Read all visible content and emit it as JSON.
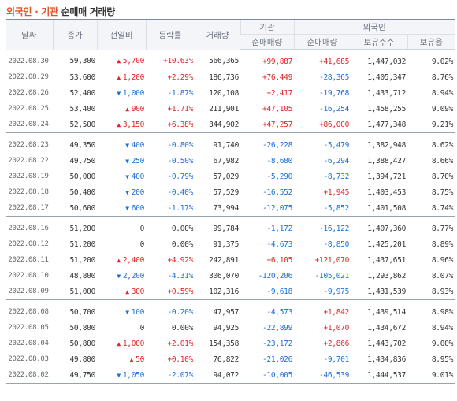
{
  "title": {
    "accent": "외국인 · 기관",
    "rest": "순매매 거래량"
  },
  "headers": {
    "date": "날짜",
    "close": "종가",
    "change": "전일비",
    "rate": "등락률",
    "volume": "거래량",
    "inst": "기관",
    "foreign": "외국인",
    "inst_net": "순매매량",
    "for_net": "순매매량",
    "for_hold": "보유주수",
    "for_ratio": "보유율"
  },
  "groups": [
    [
      {
        "date": "2022.08.30",
        "close": "59,300",
        "dir": "up",
        "change": "5,700",
        "rate": "+10.63%",
        "volume": "566,365",
        "inst": "+99,887",
        "foreign": "+41,685",
        "hold": "1,447,032",
        "ratio": "9.02%"
      },
      {
        "date": "2022.08.29",
        "close": "53,600",
        "dir": "up",
        "change": "1,200",
        "rate": "+2.29%",
        "volume": "186,736",
        "inst": "+76,449",
        "foreign": "-28,365",
        "hold": "1,405,347",
        "ratio": "8.76%"
      },
      {
        "date": "2022.08.26",
        "close": "52,400",
        "dir": "down",
        "change": "1,000",
        "rate": "-1.87%",
        "volume": "120,108",
        "inst": "+2,417",
        "foreign": "-19,768",
        "hold": "1,433,712",
        "ratio": "8.94%"
      },
      {
        "date": "2022.08.25",
        "close": "53,400",
        "dir": "up",
        "change": "900",
        "rate": "+1.71%",
        "volume": "211,901",
        "inst": "+47,105",
        "foreign": "-16,254",
        "hold": "1,458,255",
        "ratio": "9.09%"
      },
      {
        "date": "2022.08.24",
        "close": "52,500",
        "dir": "up",
        "change": "3,150",
        "rate": "+6.38%",
        "volume": "344,902",
        "inst": "+47,257",
        "foreign": "+86,000",
        "hold": "1,477,348",
        "ratio": "9.21%"
      }
    ],
    [
      {
        "date": "2022.08.23",
        "close": "49,350",
        "dir": "down",
        "change": "400",
        "rate": "-0.80%",
        "volume": "91,740",
        "inst": "-26,228",
        "foreign": "-5,479",
        "hold": "1,382,948",
        "ratio": "8.62%"
      },
      {
        "date": "2022.08.22",
        "close": "49,750",
        "dir": "down",
        "change": "250",
        "rate": "-0.50%",
        "volume": "67,982",
        "inst": "-8,680",
        "foreign": "-6,294",
        "hold": "1,388,427",
        "ratio": "8.66%"
      },
      {
        "date": "2022.08.19",
        "close": "50,000",
        "dir": "down",
        "change": "400",
        "rate": "-0.79%",
        "volume": "57,029",
        "inst": "-5,290",
        "foreign": "-8,732",
        "hold": "1,394,721",
        "ratio": "8.70%"
      },
      {
        "date": "2022.08.18",
        "close": "50,400",
        "dir": "down",
        "change": "200",
        "rate": "-0.40%",
        "volume": "57,529",
        "inst": "-16,552",
        "foreign": "+1,945",
        "hold": "1,403,453",
        "ratio": "8.75%"
      },
      {
        "date": "2022.08.17",
        "close": "50,600",
        "dir": "down",
        "change": "600",
        "rate": "-1.17%",
        "volume": "73,994",
        "inst": "-12,075",
        "foreign": "-5,852",
        "hold": "1,401,508",
        "ratio": "8.74%"
      }
    ],
    [
      {
        "date": "2022.08.16",
        "close": "51,200",
        "dir": "none",
        "change": "0",
        "rate": "0.00%",
        "volume": "99,784",
        "inst": "-1,172",
        "foreign": "-16,122",
        "hold": "1,407,360",
        "ratio": "8.77%"
      },
      {
        "date": "2022.08.12",
        "close": "51,200",
        "dir": "none",
        "change": "0",
        "rate": "0.00%",
        "volume": "91,375",
        "inst": "-4,673",
        "foreign": "-8,850",
        "hold": "1,425,201",
        "ratio": "8.89%"
      },
      {
        "date": "2022.08.11",
        "close": "51,200",
        "dir": "up",
        "change": "2,400",
        "rate": "+4.92%",
        "volume": "242,891",
        "inst": "+6,105",
        "foreign": "+121,070",
        "hold": "1,437,651",
        "ratio": "8.96%"
      },
      {
        "date": "2022.08.10",
        "close": "48,800",
        "dir": "down",
        "change": "2,200",
        "rate": "-4.31%",
        "volume": "306,070",
        "inst": "-120,206",
        "foreign": "-105,021",
        "hold": "1,293,862",
        "ratio": "8.07%"
      },
      {
        "date": "2022.08.09",
        "close": "51,000",
        "dir": "up",
        "change": "300",
        "rate": "+0.59%",
        "volume": "102,316",
        "inst": "-9,618",
        "foreign": "-9,975",
        "hold": "1,431,539",
        "ratio": "8.93%"
      }
    ],
    [
      {
        "date": "2022.08.08",
        "close": "50,700",
        "dir": "down",
        "change": "100",
        "rate": "-0.20%",
        "volume": "47,957",
        "inst": "-4,573",
        "foreign": "+1,842",
        "hold": "1,439,514",
        "ratio": "8.98%"
      },
      {
        "date": "2022.08.05",
        "close": "50,800",
        "dir": "none",
        "change": "0",
        "rate": "0.00%",
        "volume": "94,925",
        "inst": "-22,899",
        "foreign": "+1,070",
        "hold": "1,434,672",
        "ratio": "8.94%"
      },
      {
        "date": "2022.08.04",
        "close": "50,800",
        "dir": "up",
        "change": "1,000",
        "rate": "+2.01%",
        "volume": "154,358",
        "inst": "-23,172",
        "foreign": "+2,866",
        "hold": "1,443,702",
        "ratio": "9.00%"
      },
      {
        "date": "2022.08.03",
        "close": "49,800",
        "dir": "up",
        "change": "50",
        "rate": "+0.10%",
        "volume": "76,822",
        "inst": "-21,026",
        "foreign": "-9,701",
        "hold": "1,434,836",
        "ratio": "8.95%"
      },
      {
        "date": "2022.08.02",
        "close": "49,750",
        "dir": "down",
        "change": "1,050",
        "rate": "-2.07%",
        "volume": "94,072",
        "inst": "-10,005",
        "foreign": "-46,539",
        "hold": "1,444,537",
        "ratio": "9.01%"
      }
    ]
  ],
  "colors": {
    "up": "#e02424",
    "down": "#1c6fd6",
    "accent": "#e8502a"
  }
}
